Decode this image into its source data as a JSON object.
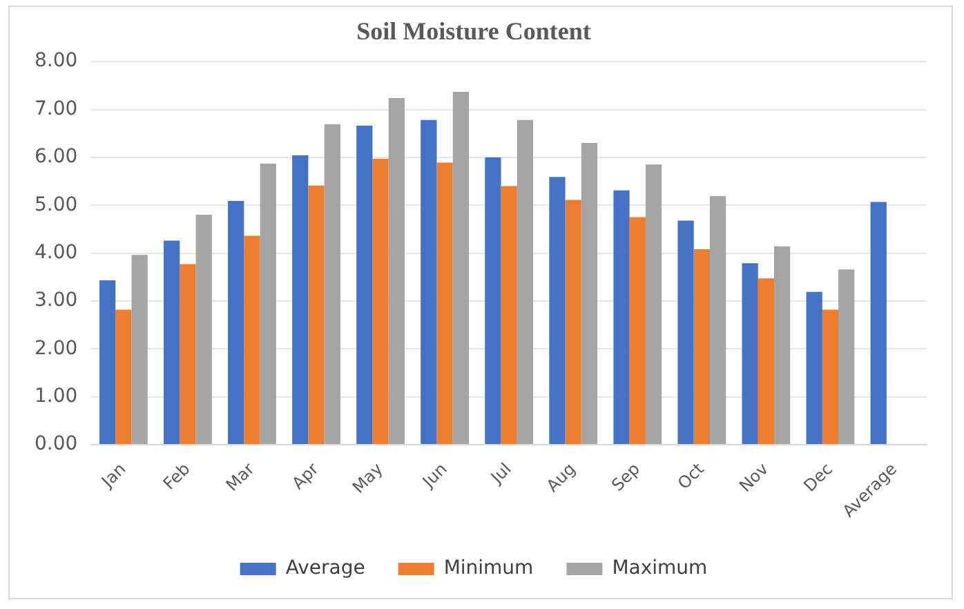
{
  "chart_data": {
    "type": "bar",
    "title": "Soil Moisture Content",
    "categories": [
      "Jan",
      "Feb",
      "Mar",
      "Apr",
      "May",
      "Jun",
      "Jul",
      "Aug",
      "Sep",
      "Oct",
      "Nov",
      "Dec",
      "Average"
    ],
    "series": [
      {
        "name": "Average",
        "color": "#4472c4",
        "values": [
          3.43,
          4.26,
          5.09,
          6.04,
          6.66,
          6.78,
          6.0,
          5.59,
          5.31,
          4.68,
          3.79,
          3.19,
          5.07
        ]
      },
      {
        "name": "Minimum",
        "color": "#ed7d31",
        "values": [
          2.82,
          3.77,
          4.36,
          5.41,
          5.97,
          5.89,
          5.4,
          5.11,
          4.75,
          4.08,
          3.47,
          2.82,
          null
        ]
      },
      {
        "name": "Maximum",
        "color": "#a5a5a5",
        "values": [
          3.96,
          4.8,
          5.87,
          6.69,
          7.24,
          7.37,
          6.78,
          6.3,
          5.85,
          5.19,
          4.14,
          3.66,
          null
        ]
      }
    ],
    "ylim": [
      0,
      8
    ],
    "yticks": [
      {
        "value": 0,
        "label": "0.00"
      },
      {
        "value": 1,
        "label": "1.00"
      },
      {
        "value": 2,
        "label": "2.00"
      },
      {
        "value": 3,
        "label": "3.00"
      },
      {
        "value": 4,
        "label": "4.00"
      },
      {
        "value": 5,
        "label": "5.00"
      },
      {
        "value": 6,
        "label": "6.00"
      },
      {
        "value": 7,
        "label": "7.00"
      },
      {
        "value": 8,
        "label": "8.00"
      }
    ],
    "grid": "y",
    "legend": "bottom"
  }
}
